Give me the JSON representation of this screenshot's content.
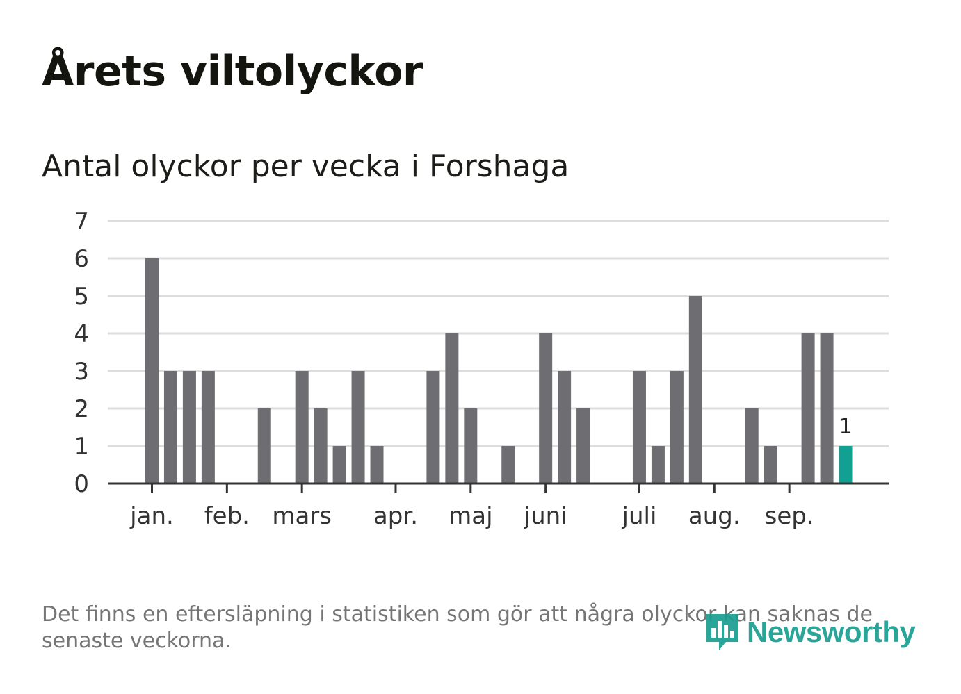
{
  "title": "Årets viltolyckor",
  "subtitle": "Antal olyckor per vecka i Forshaga",
  "footnote": "Det finns en eftersläpning i statistiken som gör att några olyckor kan saknas de senaste veckorna.",
  "logo": {
    "text": "Newsworthy",
    "icon": "bar-chart-speech-icon",
    "color": "#1a9e8f"
  },
  "colors": {
    "bar": "#6e6d72",
    "highlight": "#12a093",
    "grid": "#dddddd",
    "axis": "#333333"
  },
  "chart_data": {
    "type": "bar",
    "title": "Antal olyckor per vecka i Forshaga",
    "xlabel": "",
    "ylabel": "",
    "ylim": [
      0,
      7
    ],
    "y_ticks": [
      0,
      1,
      2,
      3,
      4,
      5,
      6,
      7
    ],
    "grid": true,
    "weeks": [
      1,
      2,
      3,
      4,
      5,
      6,
      7,
      8,
      9,
      10,
      11,
      12,
      13,
      14,
      15,
      16,
      17,
      18,
      19,
      20,
      21,
      22,
      23,
      24,
      25,
      26,
      27,
      28,
      29,
      30,
      31,
      32,
      33,
      34,
      35,
      36,
      37,
      38
    ],
    "values": [
      6,
      3,
      3,
      3,
      0,
      0,
      2,
      0,
      3,
      2,
      1,
      3,
      1,
      0,
      0,
      3,
      4,
      2,
      0,
      1,
      0,
      4,
      3,
      2,
      0,
      0,
      3,
      1,
      3,
      5,
      0,
      0,
      2,
      1,
      0,
      4,
      4,
      1
    ],
    "highlight_index": 37,
    "highlight_label": "1",
    "month_ticks": [
      {
        "label": "jan.",
        "week": 1
      },
      {
        "label": "feb.",
        "week": 5
      },
      {
        "label": "mars",
        "week": 9
      },
      {
        "label": "apr.",
        "week": 14
      },
      {
        "label": "maj",
        "week": 18
      },
      {
        "label": "juni",
        "week": 22
      },
      {
        "label": "juli",
        "week": 27
      },
      {
        "label": "aug.",
        "week": 31
      },
      {
        "label": "sep.",
        "week": 35
      }
    ]
  }
}
